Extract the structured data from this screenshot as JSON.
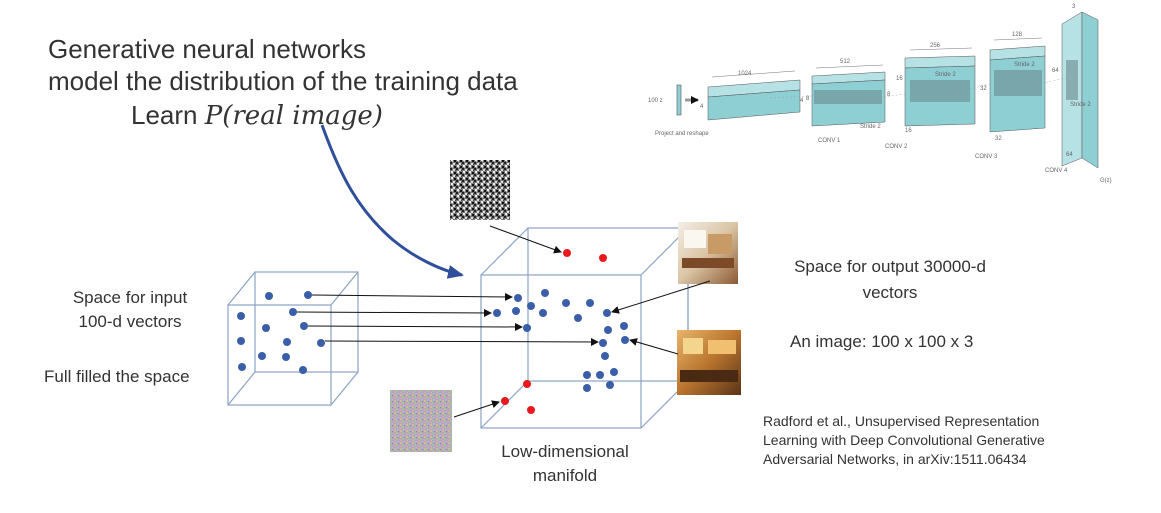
{
  "title": {
    "line1": "Generative neural networks",
    "line2": "model the distribution of the training data",
    "line3_prefix": "Learn ",
    "line3_math": "P(real image)"
  },
  "input_space": {
    "label_line1": "Space for input",
    "label_line2": "100-d vectors",
    "note": "Full filled the space"
  },
  "manifold": {
    "label_line1": "Low-dimensional",
    "label_line2": "manifold"
  },
  "output_space": {
    "label_line1": "Space for output 30000-d",
    "label_line2": "vectors",
    "image_note": "An image: 100 x 100 x 3"
  },
  "citation": {
    "line1": "Radford et al., Unsupervised Representation",
    "line2": "Learning with Deep Convolutional Generative",
    "line3": "Adversarial Networks, in arXiv:1511.06434"
  },
  "dcgan_figure": {
    "input_label": "100 z",
    "project_label": "Project and reshape",
    "stage_names": [
      "CONV 1",
      "CONV 2",
      "CONV 3",
      "CONV 4"
    ],
    "channels": [
      "1024",
      "512",
      "256",
      "128",
      "3"
    ],
    "sizes": [
      "4",
      "4",
      "8",
      "8",
      "16",
      "16",
      "32",
      "32",
      "64",
      "64"
    ],
    "stride_label": "Stride 2",
    "output_label": "G(z)"
  },
  "colors": {
    "dot_blue": "#3a5ea8",
    "dot_red": "#e8191c",
    "cube_edge": "#8aa4c4",
    "curve_arrow": "#2f4f9a",
    "dcgan_block": "#8ecfd4"
  }
}
